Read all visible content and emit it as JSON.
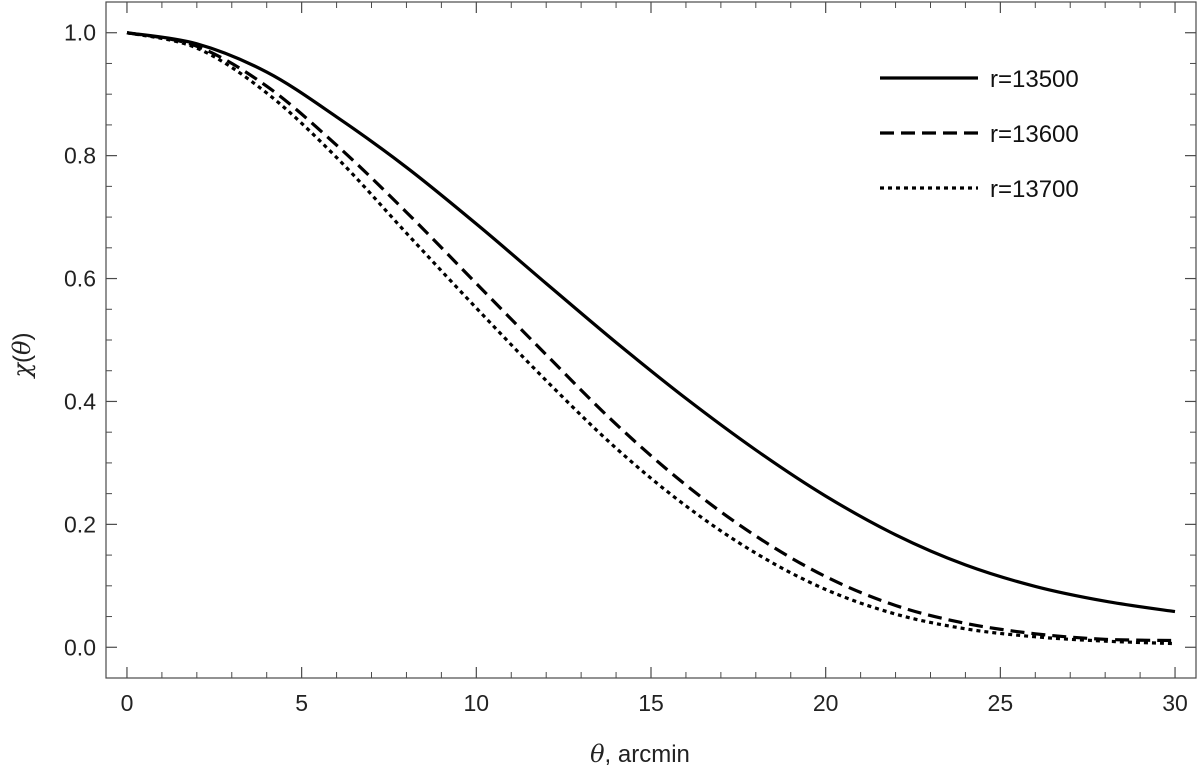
{
  "chart_data": {
    "type": "line",
    "xlabel": {
      "symbol": "θ",
      "rest": ", arcmin"
    },
    "ylabel": {
      "symbol": "χ",
      "paren_open": "(",
      "arg": "θ",
      "paren_close": ")"
    },
    "xlim": [
      -0.6,
      30.6
    ],
    "ylim": [
      -0.05,
      1.05
    ],
    "x_ticks": [
      0,
      5,
      10,
      15,
      20,
      25,
      30
    ],
    "x_tick_labels": [
      "0",
      "5",
      "10",
      "15",
      "20",
      "25",
      "30"
    ],
    "y_ticks": [
      0.0,
      0.2,
      0.4,
      0.6,
      0.8,
      1.0
    ],
    "y_tick_labels": [
      "0.0",
      "0.2",
      "0.4",
      "0.6",
      "0.8",
      "1.0"
    ],
    "grid": false,
    "frame": "box",
    "legend_position": "top-right",
    "series": [
      {
        "name": "r=13500",
        "style": "solid",
        "color": "#000000",
        "x": [
          0,
          2,
          4,
          6,
          8,
          10,
          12,
          14,
          16,
          18,
          20,
          22,
          24,
          26,
          28,
          30
        ],
        "y": [
          1.0,
          0.982,
          0.936,
          0.863,
          0.781,
          0.689,
          0.592,
          0.496,
          0.405,
          0.321,
          0.246,
          0.183,
          0.134,
          0.099,
          0.075,
          0.058
        ]
      },
      {
        "name": "r=13600",
        "style": "dashed",
        "color": "#000000",
        "x": [
          0,
          2,
          4,
          6,
          8,
          10,
          12,
          14,
          16,
          18,
          20,
          22,
          24,
          26,
          28,
          30
        ],
        "y": [
          1.0,
          0.978,
          0.913,
          0.817,
          0.708,
          0.592,
          0.476,
          0.363,
          0.264,
          0.181,
          0.115,
          0.068,
          0.039,
          0.022,
          0.013,
          0.011
        ]
      },
      {
        "name": "r=13700",
        "style": "dotted",
        "color": "#000000",
        "x": [
          0,
          2,
          4,
          6,
          8,
          10,
          12,
          14,
          16,
          18,
          20,
          22,
          24,
          26,
          28,
          30
        ],
        "y": [
          1.0,
          0.975,
          0.902,
          0.797,
          0.674,
          0.552,
          0.434,
          0.324,
          0.23,
          0.153,
          0.094,
          0.054,
          0.03,
          0.017,
          0.01,
          0.006
        ]
      }
    ]
  }
}
